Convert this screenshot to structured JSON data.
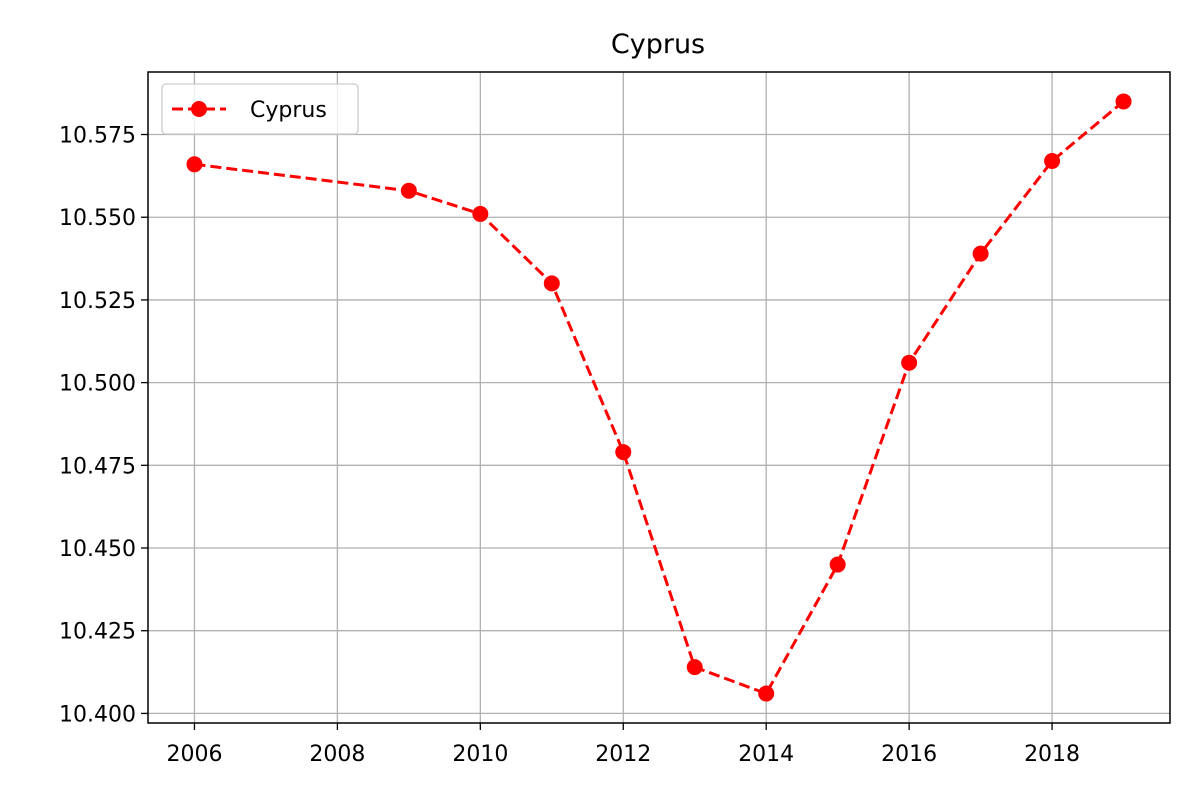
{
  "chart_data": {
    "type": "line",
    "title": "Cyprus",
    "xlabel": "",
    "ylabel": "",
    "series": [
      {
        "name": "Cyprus",
        "color": "#ff0000",
        "line_style": "dashed",
        "marker": "circle",
        "x": [
          2006,
          2009,
          2010,
          2011,
          2012,
          2013,
          2014,
          2015,
          2016,
          2017,
          2018,
          2019
        ],
        "y": [
          10.566,
          10.558,
          10.551,
          10.53,
          10.479,
          10.414,
          10.406,
          10.445,
          10.506,
          10.539,
          10.567,
          10.585
        ]
      }
    ],
    "x_ticks": [
      "2006",
      "2008",
      "2010",
      "2012",
      "2014",
      "2016",
      "2018"
    ],
    "y_ticks": [
      "10.400",
      "10.425",
      "10.450",
      "10.475",
      "10.500",
      "10.525",
      "10.550",
      "10.575"
    ],
    "xlim": [
      2005.35,
      2019.65
    ],
    "ylim": [
      10.3971,
      10.5939
    ],
    "grid": true,
    "legend_position": "top-left",
    "colors": {
      "grid": "#b0b0b0",
      "axes": "#000000"
    }
  }
}
